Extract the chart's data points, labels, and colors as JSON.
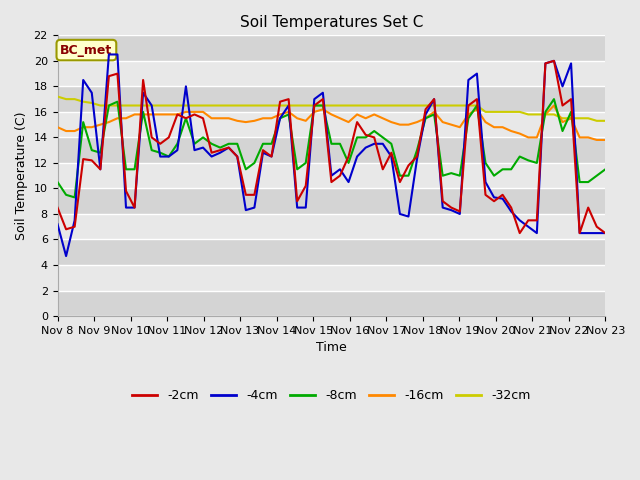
{
  "title": "Soil Temperatures Set C",
  "xlabel": "Time",
  "ylabel": "Soil Temperature (C)",
  "annotation": "BC_met",
  "ylim": [
    0,
    22
  ],
  "yticks": [
    0,
    2,
    4,
    6,
    8,
    10,
    12,
    14,
    16,
    18,
    20,
    22
  ],
  "x_labels": [
    "Nov 8",
    "Nov 9",
    "Nov 10",
    "Nov 11",
    "Nov 12",
    "Nov 13",
    "Nov 14",
    "Nov 15",
    "Nov 16",
    "Nov 17",
    "Nov 18",
    "Nov 19",
    "Nov 20",
    "Nov 21",
    "Nov 22",
    "Nov 23"
  ],
  "series": {
    "neg2cm": {
      "color": "#cc0000",
      "label": "-2cm",
      "values": [
        8.5,
        6.8,
        7.0,
        12.3,
        12.2,
        11.5,
        18.8,
        19.0,
        9.8,
        8.5,
        18.5,
        14.0,
        13.5,
        14.0,
        15.8,
        15.5,
        15.8,
        15.5,
        12.8,
        13.0,
        13.2,
        12.5,
        9.5,
        9.5,
        13.0,
        12.5,
        16.8,
        17.0,
        9.0,
        10.2,
        16.5,
        17.0,
        10.5,
        11.0,
        12.5,
        15.2,
        14.2,
        14.0,
        11.5,
        12.8,
        10.5,
        11.8,
        12.5,
        16.2,
        17.0,
        9.0,
        8.5,
        8.2,
        16.5,
        17.0,
        9.5,
        9.0,
        9.5,
        8.5,
        6.5,
        7.5,
        7.5,
        19.8,
        20.0,
        16.5,
        17.0,
        6.5,
        8.5,
        7.0,
        6.5
      ]
    },
    "neg4cm": {
      "color": "#0000cc",
      "label": "-4cm",
      "values": [
        7.2,
        4.7,
        7.5,
        18.5,
        17.5,
        11.5,
        20.5,
        20.5,
        8.5,
        8.5,
        17.5,
        16.5,
        12.5,
        12.5,
        13.0,
        18.0,
        13.0,
        13.2,
        12.5,
        12.8,
        13.2,
        12.5,
        8.3,
        8.5,
        12.8,
        12.5,
        15.5,
        16.5,
        8.5,
        8.5,
        17.0,
        17.5,
        11.0,
        11.5,
        10.5,
        12.5,
        13.2,
        13.5,
        13.5,
        12.5,
        8.0,
        7.8,
        12.3,
        15.8,
        17.0,
        8.5,
        8.3,
        8.0,
        18.5,
        19.0,
        10.5,
        9.3,
        9.2,
        8.2,
        7.5,
        7.0,
        6.5,
        19.8,
        20.0,
        18.0,
        19.8,
        6.5,
        6.5,
        6.5,
        6.5
      ]
    },
    "neg8cm": {
      "color": "#00aa00",
      "label": "-8cm",
      "values": [
        10.5,
        9.5,
        9.3,
        15.2,
        13.0,
        12.8,
        16.5,
        16.8,
        11.5,
        11.5,
        16.0,
        13.0,
        12.8,
        12.5,
        13.5,
        15.5,
        13.5,
        14.0,
        13.5,
        13.2,
        13.5,
        13.5,
        11.5,
        12.0,
        13.5,
        13.5,
        15.5,
        15.8,
        11.5,
        12.0,
        16.5,
        16.5,
        13.5,
        13.5,
        12.0,
        14.0,
        14.0,
        14.5,
        14.0,
        13.5,
        11.0,
        11.0,
        13.0,
        15.5,
        15.8,
        11.0,
        11.2,
        11.0,
        15.5,
        16.5,
        12.0,
        11.0,
        11.5,
        11.5,
        12.5,
        12.2,
        12.0,
        16.0,
        17.0,
        14.5,
        16.0,
        10.5,
        10.5,
        11.0,
        11.5
      ]
    },
    "neg16cm": {
      "color": "#ff8800",
      "label": "-16cm",
      "values": [
        14.8,
        14.5,
        14.5,
        14.8,
        14.8,
        15.0,
        15.2,
        15.5,
        15.5,
        15.8,
        15.8,
        15.8,
        15.8,
        15.8,
        15.8,
        16.0,
        16.0,
        16.0,
        15.5,
        15.5,
        15.5,
        15.3,
        15.2,
        15.3,
        15.5,
        15.5,
        15.8,
        16.0,
        15.5,
        15.3,
        16.0,
        16.2,
        15.8,
        15.5,
        15.2,
        15.8,
        15.5,
        15.8,
        15.5,
        15.2,
        15.0,
        15.0,
        15.2,
        15.5,
        16.0,
        15.2,
        15.0,
        14.8,
        15.8,
        16.2,
        15.2,
        14.8,
        14.8,
        14.5,
        14.3,
        14.0,
        14.0,
        15.8,
        16.5,
        15.2,
        15.5,
        14.0,
        14.0,
        13.8,
        13.8
      ]
    },
    "neg32cm": {
      "color": "#cccc00",
      "label": "-32cm",
      "values": [
        17.2,
        17.0,
        17.0,
        16.8,
        16.7,
        16.5,
        16.5,
        16.5,
        16.5,
        16.5,
        16.5,
        16.5,
        16.5,
        16.5,
        16.5,
        16.5,
        16.5,
        16.5,
        16.5,
        16.5,
        16.5,
        16.5,
        16.5,
        16.5,
        16.5,
        16.5,
        16.5,
        16.5,
        16.5,
        16.5,
        16.5,
        16.5,
        16.5,
        16.5,
        16.5,
        16.5,
        16.5,
        16.5,
        16.5,
        16.5,
        16.5,
        16.5,
        16.5,
        16.5,
        16.5,
        16.5,
        16.5,
        16.5,
        16.5,
        16.5,
        16.0,
        16.0,
        16.0,
        16.0,
        16.0,
        15.8,
        15.8,
        15.8,
        15.8,
        15.5,
        15.5,
        15.5,
        15.5,
        15.3,
        15.3
      ]
    }
  },
  "bg_color": "#e8e8e8",
  "band_dark": "#d4d4d4",
  "band_light": "#e8e8e8",
  "grid_color": "#ffffff",
  "title_fontsize": 11,
  "label_fontsize": 9,
  "tick_fontsize": 8,
  "legend_fontsize": 9
}
